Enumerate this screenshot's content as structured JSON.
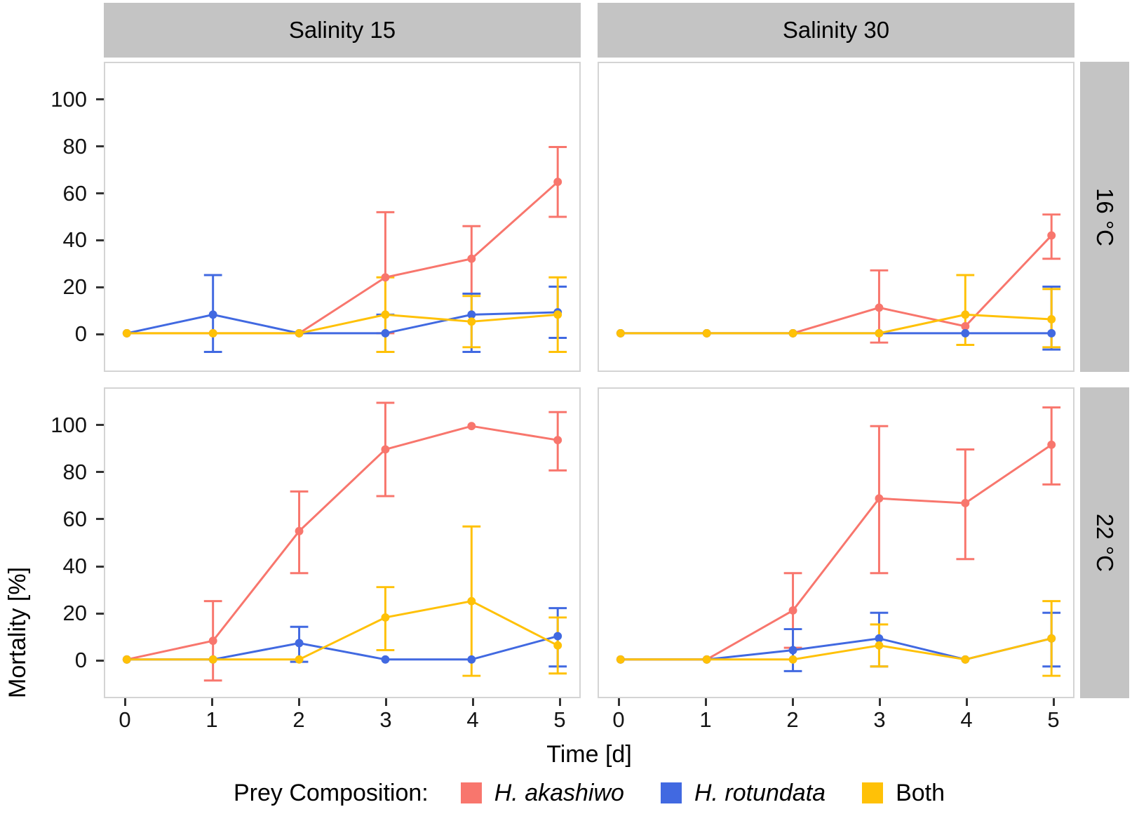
{
  "chart_data": {
    "type": "line",
    "title": "",
    "xlabel": "Time [d]",
    "ylabel": "Mortality [%]",
    "legend_title": "Prey Composition:",
    "legend_position": "bottom",
    "grid": false,
    "x": [
      0,
      1,
      2,
      3,
      4,
      5
    ],
    "x_ticks": [
      "0",
      "1",
      "2",
      "3",
      "4",
      "5"
    ],
    "y_ticks": [
      "0",
      "20",
      "40",
      "60",
      "80",
      "100"
    ],
    "ylim": [
      -16,
      116
    ],
    "facets": {
      "columns": [
        "Salinity 15",
        "Salinity 30"
      ],
      "rows": [
        "16 °C",
        "22 °C"
      ]
    },
    "series_info": [
      {
        "name": "H. akashiwo",
        "color": "#F8766D",
        "italic": true
      },
      {
        "name": "H. rotundata",
        "color": "#4169E1",
        "italic": true
      },
      {
        "name": "Both",
        "color": "#FFC107",
        "italic": false
      }
    ],
    "panels": [
      {
        "col": "Salinity 15",
        "row": "16 °C",
        "series": [
          {
            "name": "H. akashiwo",
            "values": [
              0,
              0,
              0,
              24,
              32,
              65
            ],
            "err_low": [
              0,
              0,
              0,
              0,
              17,
              50
            ],
            "err_high": [
              0,
              0,
              0,
              52,
              46,
              80
            ]
          },
          {
            "name": "H. rotundata",
            "values": [
              0,
              8,
              0,
              0,
              8,
              9
            ],
            "err_low": [
              0,
              -8,
              0,
              -8,
              -8,
              -2
            ],
            "err_high": [
              0,
              25,
              0,
              8,
              17,
              20
            ]
          },
          {
            "name": "Both",
            "values": [
              0,
              0,
              0,
              8,
              5,
              8
            ],
            "err_low": [
              0,
              0,
              0,
              -8,
              -6,
              -8
            ],
            "err_high": [
              0,
              0,
              0,
              24,
              16,
              24
            ]
          }
        ]
      },
      {
        "col": "Salinity 30",
        "row": "16 °C",
        "series": [
          {
            "name": "H. akashiwo",
            "values": [
              0,
              0,
              0,
              11,
              3,
              42
            ],
            "err_low": [
              0,
              0,
              0,
              -4,
              3,
              32
            ],
            "err_high": [
              0,
              0,
              0,
              27,
              3,
              51
            ]
          },
          {
            "name": "H. rotundata",
            "values": [
              0,
              0,
              0,
              0,
              0,
              0
            ],
            "err_low": [
              0,
              0,
              0,
              0,
              0,
              -7
            ],
            "err_high": [
              0,
              0,
              0,
              0,
              0,
              20
            ]
          },
          {
            "name": "Both",
            "values": [
              0,
              0,
              0,
              0,
              8,
              6
            ],
            "err_low": [
              0,
              0,
              0,
              0,
              -5,
              -6
            ],
            "err_high": [
              0,
              0,
              0,
              0,
              25,
              19
            ]
          }
        ]
      },
      {
        "col": "Salinity 15",
        "row": "22 °C",
        "series": [
          {
            "name": "H. akashiwo",
            "values": [
              0,
              8,
              55,
              90,
              100,
              94
            ],
            "err_low": [
              0,
              -9,
              37,
              70,
              100,
              81
            ],
            "err_high": [
              0,
              25,
              72,
              110,
              100,
              106
            ]
          },
          {
            "name": "H. rotundata",
            "values": [
              0,
              0,
              7,
              0,
              0,
              10
            ],
            "err_low": [
              0,
              0,
              -1,
              0,
              0,
              -3
            ],
            "err_high": [
              0,
              0,
              14,
              0,
              0,
              22
            ]
          },
          {
            "name": "Both",
            "values": [
              0,
              0,
              0,
              18,
              25,
              6
            ],
            "err_low": [
              0,
              0,
              0,
              4,
              -7,
              -6
            ],
            "err_high": [
              0,
              0,
              0,
              31,
              57,
              18
            ]
          }
        ]
      },
      {
        "col": "Salinity 30",
        "row": "22 °C",
        "series": [
          {
            "name": "H. akashiwo",
            "values": [
              0,
              0,
              21,
              69,
              67,
              92
            ],
            "err_low": [
              0,
              0,
              5,
              37,
              43,
              75
            ],
            "err_high": [
              0,
              0,
              37,
              100,
              90,
              108
            ]
          },
          {
            "name": "H. rotundata",
            "values": [
              0,
              0,
              4,
              9,
              0,
              9
            ],
            "err_low": [
              0,
              0,
              -5,
              -3,
              0,
              -3
            ],
            "err_high": [
              0,
              0,
              13,
              20,
              0,
              20
            ]
          },
          {
            "name": "Both",
            "values": [
              0,
              0,
              0,
              6,
              0,
              9
            ],
            "err_low": [
              0,
              0,
              0,
              -3,
              0,
              -7
            ],
            "err_high": [
              0,
              0,
              0,
              15,
              0,
              25
            ]
          }
        ]
      }
    ]
  }
}
